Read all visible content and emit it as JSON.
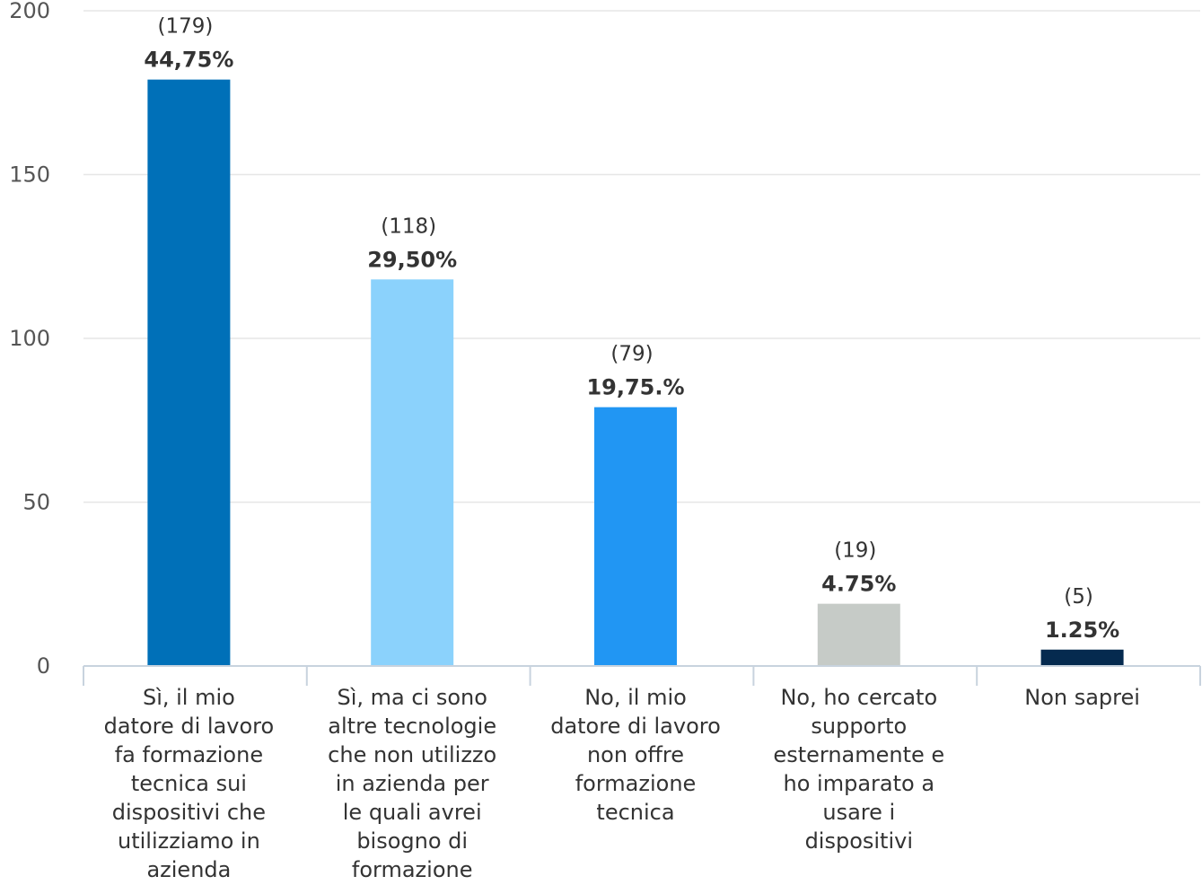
{
  "chart_data": {
    "type": "bar",
    "categories": [
      [
        "Sì, il mio",
        "datore di lavoro",
        "fa formazione",
        "tecnica sui",
        "dispositivi che",
        "utilizziamo in",
        "azienda"
      ],
      [
        "Sì, ma ci sono",
        "altre tecnologie",
        "che non utilizzo",
        "in azienda per",
        "le quali avrei",
        "bisogno di",
        "formazione"
      ],
      [
        "No, il mio",
        "datore di lavoro",
        "non offre",
        "formazione",
        "tecnica"
      ],
      [
        "No, ho cercato",
        "supporto",
        "esternamente e",
        "ho imparato a",
        "usare i",
        "dispositivi"
      ],
      [
        "Non saprei"
      ]
    ],
    "values": [
      179,
      118,
      79,
      19,
      5
    ],
    "count_labels": [
      "(179)",
      "(118)",
      "(79)",
      "(19)",
      "(5)"
    ],
    "percent_labels": [
      "44,75%",
      "29,50%",
      "19,75.%",
      "4.75%",
      "1.25%"
    ],
    "colors": [
      "#0070B8",
      "#8BD2FC",
      "#2196F3",
      "#C6CBC7",
      "#052A4F"
    ],
    "ylim": [
      0,
      200
    ],
    "yticks": [
      "0",
      "50",
      "100",
      "150",
      "200"
    ],
    "grid": true,
    "title": "",
    "xlabel": "",
    "ylabel": ""
  }
}
